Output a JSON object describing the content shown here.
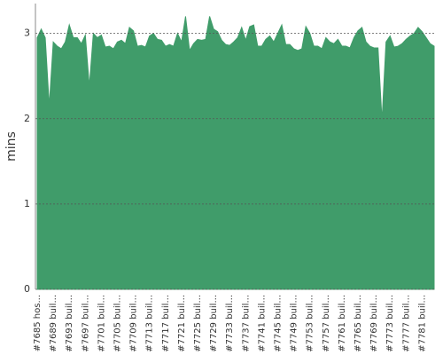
{
  "chart_data": {
    "type": "area",
    "y_label": "mins",
    "color": "#409c6a",
    "categories": [
      "#7685 hos...",
      null,
      null,
      null,
      "#7689 buil...",
      null,
      null,
      null,
      "#7693 buil...",
      null,
      null,
      null,
      "#7697 buil...",
      null,
      null,
      null,
      "#7701 buil...",
      null,
      null,
      null,
      "#7705 buil...",
      null,
      null,
      null,
      "#7709 buil...",
      null,
      null,
      null,
      "#7713 buil...",
      null,
      null,
      null,
      "#7717 buil...",
      null,
      null,
      null,
      "#7721 buil...",
      null,
      null,
      null,
      "#7725 buil...",
      null,
      null,
      null,
      "#7729 buil...",
      null,
      null,
      null,
      "#7733 buil...",
      null,
      null,
      null,
      "#7737 buil...",
      null,
      null,
      null,
      "#7741 buil...",
      null,
      null,
      null,
      "#7745 buil...",
      null,
      null,
      null,
      "#7749 buil...",
      null,
      null,
      null,
      "#7753 buil...",
      null,
      null,
      null,
      "#7757 buil...",
      null,
      null,
      null,
      "#7761 buil...",
      null,
      null,
      null,
      "#7765 buil...",
      null,
      null,
      null,
      "#7769 buil...",
      null,
      null,
      null,
      "#7773 buil...",
      null,
      null,
      null,
      "#7777 buil...",
      null,
      null,
      null,
      "#7781 buil...",
      null,
      null,
      null
    ],
    "values": [
      2.95,
      3.05,
      2.95,
      2.15,
      2.9,
      2.85,
      2.82,
      2.9,
      3.1,
      2.95,
      2.95,
      2.88,
      2.98,
      2.38,
      3.0,
      2.95,
      2.98,
      2.84,
      2.85,
      2.82,
      2.9,
      2.92,
      2.88,
      3.07,
      3.03,
      2.85,
      2.86,
      2.84,
      2.97,
      3.0,
      2.93,
      2.92,
      2.85,
      2.87,
      2.85,
      3.0,
      2.9,
      3.2,
      2.8,
      2.88,
      2.93,
      2.92,
      2.93,
      3.2,
      3.05,
      3.02,
      2.92,
      2.87,
      2.86,
      2.9,
      2.95,
      3.07,
      2.92,
      3.08,
      3.1,
      2.85,
      2.85,
      2.93,
      2.97,
      2.9,
      3.0,
      3.1,
      2.87,
      2.87,
      2.82,
      2.8,
      2.82,
      3.08,
      3.0,
      2.85,
      2.85,
      2.82,
      2.95,
      2.9,
      2.88,
      2.93,
      2.85,
      2.85,
      2.83,
      2.95,
      3.03,
      3.07,
      2.9,
      2.85,
      2.83,
      2.83,
      1.98,
      2.9,
      2.97,
      2.84,
      2.85,
      2.88,
      2.93,
      2.97,
      3.0,
      3.07,
      3.02,
      2.95,
      2.88,
      2.85
    ],
    "ylim": [
      0,
      3.35
    ],
    "yticks": [
      0,
      1,
      2,
      3
    ],
    "grid": true
  }
}
